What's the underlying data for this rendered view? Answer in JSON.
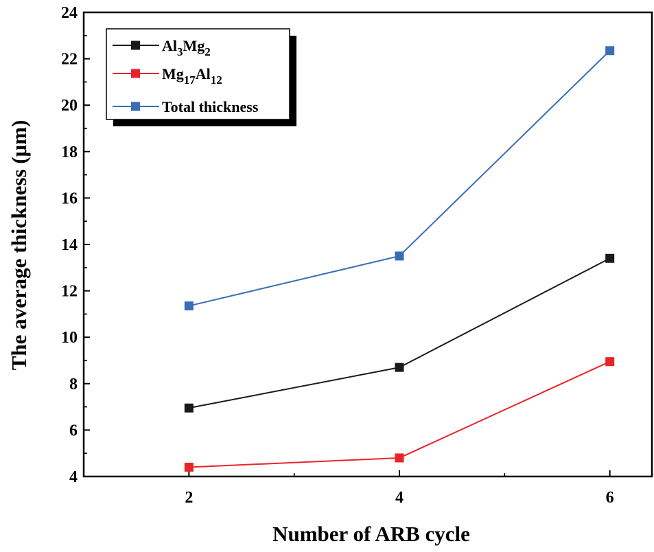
{
  "chart_data": {
    "type": "line",
    "x": [
      2,
      4,
      6
    ],
    "series": [
      {
        "name": "Al3Mg2",
        "values": [
          6.95,
          8.7,
          13.4
        ],
        "color": "#1a1a1a"
      },
      {
        "name": "Mg17Al12",
        "values": [
          4.4,
          4.8,
          8.95
        ],
        "color": "#e8242a"
      },
      {
        "name": "Total thickness",
        "values": [
          11.35,
          13.5,
          22.35
        ],
        "color": "#3a6db5"
      }
    ],
    "legend": [
      {
        "parts": [
          [
            "Al",
            ""
          ],
          [
            "3",
            "sub"
          ],
          [
            "Mg",
            ""
          ],
          [
            "2",
            "sub"
          ]
        ],
        "color": "#1a1a1a"
      },
      {
        "parts": [
          [
            "Mg",
            ""
          ],
          [
            "17",
            "sub"
          ],
          [
            "Al",
            ""
          ],
          [
            "12",
            "sub"
          ]
        ],
        "color": "#e8242a"
      },
      {
        "parts": [
          [
            "Total thickness",
            ""
          ]
        ],
        "color": "#3a6db5"
      }
    ],
    "xlabel": "Number of ARB cycle",
    "ylabel": "The average thickness (μm)",
    "xticks": [
      2,
      4,
      6
    ],
    "yticks": [
      4,
      6,
      8,
      10,
      12,
      14,
      16,
      18,
      20,
      22,
      24
    ],
    "xlim": [
      1,
      6.4
    ],
    "ylim": [
      4,
      24
    ],
    "grid": false,
    "legend_position": "top-left",
    "marker": "square"
  }
}
